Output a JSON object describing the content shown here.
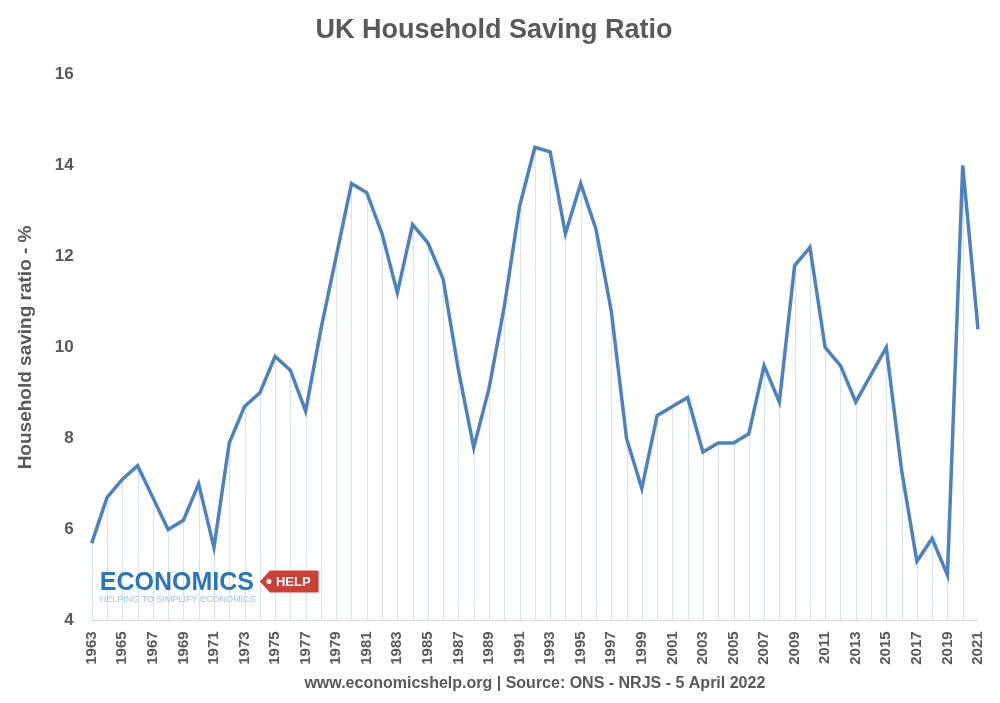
{
  "chart_data": {
    "type": "line",
    "title": "UK Household Saving Ratio",
    "x_label": "www.economicshelp.org | Source: ONS - NRJS - 5 April 2022",
    "y_label": "Household saving ratio - %",
    "categories": [
      "1963",
      null,
      "1965",
      null,
      "1967",
      null,
      "1969",
      null,
      "1971",
      null,
      "1973",
      null,
      "1975",
      null,
      "1977",
      null,
      "1979",
      null,
      "1981",
      null,
      "1983",
      null,
      "1985",
      null,
      "1987",
      null,
      "1989",
      null,
      "1991",
      null,
      "1993",
      null,
      "1995",
      null,
      "1997",
      null,
      "1999",
      null,
      "2001",
      null,
      "2003",
      null,
      "2005",
      null,
      "2007",
      null,
      "2009",
      null,
      "2011",
      null,
      "2013",
      null,
      "2015",
      null,
      "2017",
      null,
      "2019",
      null,
      "2021"
    ],
    "values": [
      5.7,
      6.7,
      7.1,
      7.4,
      6.7,
      6.0,
      6.2,
      7.0,
      5.6,
      7.9,
      8.7,
      9.0,
      9.8,
      9.5,
      8.6,
      10.4,
      12.0,
      13.6,
      13.4,
      12.5,
      11.2,
      12.7,
      12.3,
      11.5,
      9.5,
      7.8,
      9.1,
      10.9,
      13.1,
      14.4,
      14.3,
      12.5,
      13.6,
      12.6,
      10.8,
      8.0,
      6.9,
      8.5,
      8.7,
      8.9,
      7.7,
      7.9,
      7.9,
      8.1,
      9.6,
      8.8,
      11.8,
      12.2,
      10.0,
      9.6,
      8.8,
      9.4,
      10.0,
      7.3,
      5.3,
      5.8,
      5.0,
      14.0,
      10.4
    ],
    "color": "#4f81bd",
    "ylim": [
      4,
      16
    ],
    "yticks": [
      4,
      6,
      8,
      10,
      12,
      14,
      16
    ],
    "grid": false,
    "annotations": [
      "ECONOMICS",
      "HELP",
      "HELPING TO SIMPLIFY ECONOMICS"
    ]
  }
}
